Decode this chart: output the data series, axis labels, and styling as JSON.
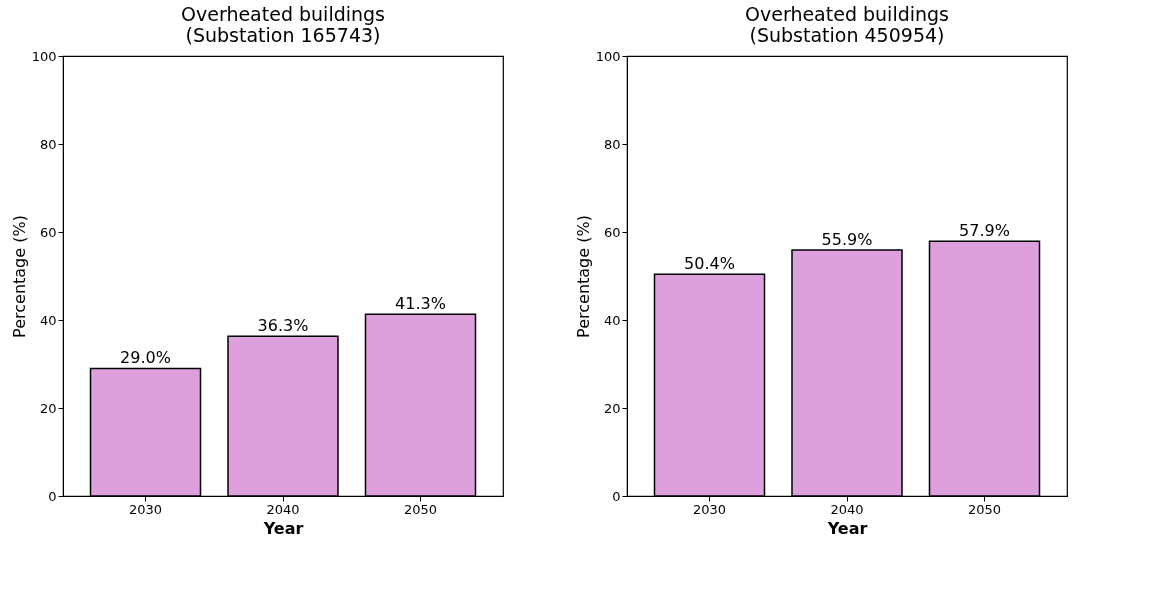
{
  "chart_data": [
    {
      "type": "bar",
      "title": "Overheated buildings\n(Substation 165743)",
      "xlabel": "Year",
      "ylabel": "Percentage (%)",
      "categories": [
        "2030",
        "2040",
        "2050"
      ],
      "values": [
        29.0,
        36.3,
        41.3
      ],
      "value_labels": [
        "29.0%",
        "36.3%",
        "41.3%"
      ],
      "color": "#dda0dd",
      "ylim": [
        0,
        100
      ],
      "yticks": [
        0,
        20,
        40,
        60,
        80,
        100
      ],
      "grid": false
    },
    {
      "type": "bar",
      "title": "Overheated buildings\n(Substation 450954)",
      "xlabel": "Year",
      "ylabel": "Percentage (%)",
      "categories": [
        "2030",
        "2040",
        "2050"
      ],
      "values": [
        50.4,
        55.9,
        57.9
      ],
      "value_labels": [
        "50.4%",
        "55.9%",
        "57.9%"
      ],
      "color": "#dda0dd",
      "ylim": [
        0,
        100
      ],
      "yticks": [
        0,
        20,
        40,
        60,
        80,
        100
      ],
      "grid": false
    }
  ]
}
